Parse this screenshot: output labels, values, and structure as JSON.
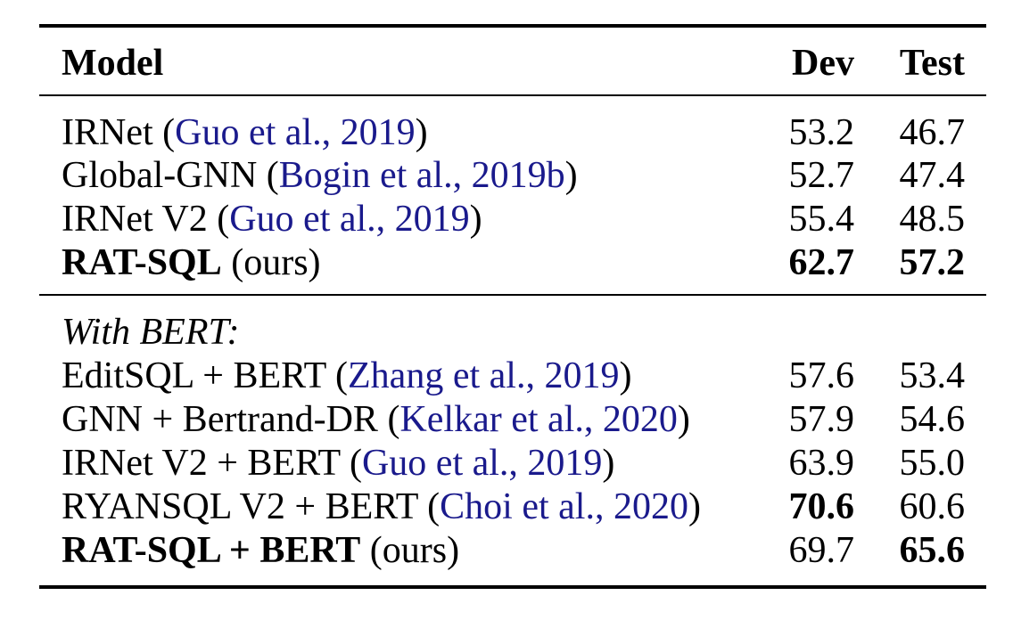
{
  "table": {
    "header": {
      "model": "Model",
      "dev": "Dev",
      "test": "Test"
    },
    "group1": [
      {
        "name": "IRNet",
        "cite": "Guo et al., 2019",
        "dev": "53.2",
        "test": "46.7"
      },
      {
        "name": "Global-GNN",
        "cite": "Bogin et al., 2019b",
        "dev": "52.7",
        "test": "47.4"
      },
      {
        "name": "IRNet V2",
        "cite": "Guo et al., 2019",
        "dev": "55.4",
        "test": "48.5"
      },
      {
        "name": "RAT-SQL",
        "suffix": "(ours)",
        "dev": "62.7",
        "test": "57.2"
      }
    ],
    "section_label": "With BERT:",
    "group2": [
      {
        "name": "EditSQL + BERT",
        "cite": "Zhang et al., 2019",
        "dev": "57.6",
        "test": "53.4"
      },
      {
        "name": "GNN + Bertrand-DR",
        "cite": "Kelkar et al., 2020",
        "dev": "57.9",
        "test": "54.6"
      },
      {
        "name": "IRNet V2 + BERT",
        "cite": "Guo et al., 2019",
        "dev": "63.9",
        "test": "55.0"
      },
      {
        "name": "RYANSQL V2 + BERT",
        "cite": "Choi et al., 2020",
        "dev": "70.6",
        "test": "60.6"
      },
      {
        "name": "RAT-SQL + BERT",
        "suffix": "(ours)",
        "dev": "69.7",
        "test": "65.6"
      }
    ]
  }
}
